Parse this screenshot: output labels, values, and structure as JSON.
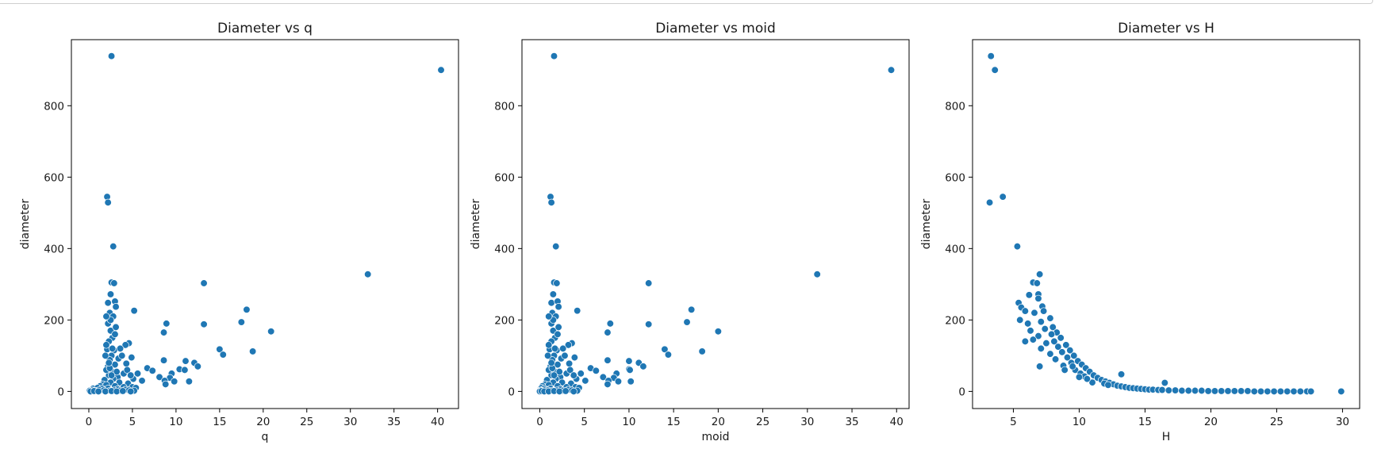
{
  "chart_data": [
    {
      "type": "scatter",
      "title": "Diameter vs q",
      "xlabel": "q",
      "ylabel": "diameter",
      "xlim": [
        -2,
        42.4
      ],
      "ylim": [
        -48,
        985
      ],
      "xticks": [
        0,
        5,
        10,
        15,
        20,
        25,
        30,
        35,
        40
      ],
      "yticks": [
        0,
        200,
        400,
        600,
        800
      ],
      "grid": false,
      "color": "#1f77b4",
      "points": [
        [
          2.6,
          939
        ],
        [
          40.4,
          900
        ],
        [
          2.1,
          545
        ],
        [
          2.2,
          529
        ],
        [
          2.8,
          406
        ],
        [
          32.0,
          328
        ],
        [
          2.6,
          305
        ],
        [
          2.9,
          303
        ],
        [
          13.2,
          303
        ],
        [
          2.5,
          272
        ],
        [
          2.2,
          248
        ],
        [
          3.0,
          252
        ],
        [
          3.1,
          237
        ],
        [
          18.1,
          229
        ],
        [
          5.2,
          226
        ],
        [
          2.4,
          220
        ],
        [
          2.8,
          210
        ],
        [
          17.5,
          194
        ],
        [
          8.9,
          190
        ],
        [
          13.2,
          188
        ],
        [
          20.9,
          168
        ],
        [
          8.6,
          165
        ],
        [
          18.8,
          112
        ],
        [
          2.2,
          190
        ],
        [
          2.5,
          170
        ],
        [
          2.7,
          150
        ],
        [
          3.0,
          160
        ],
        [
          2.3,
          140
        ],
        [
          4.6,
          135
        ],
        [
          4.2,
          130
        ],
        [
          2.1,
          118
        ],
        [
          2.9,
          115
        ],
        [
          15.0,
          118
        ],
        [
          15.4,
          103
        ],
        [
          2.6,
          100
        ],
        [
          4.9,
          95
        ],
        [
          3.4,
          92
        ],
        [
          2.4,
          88
        ],
        [
          8.6,
          87
        ],
        [
          11.1,
          85
        ],
        [
          12.1,
          80
        ],
        [
          4.3,
          78
        ],
        [
          3.0,
          75
        ],
        [
          12.5,
          70
        ],
        [
          2.2,
          70
        ],
        [
          10.4,
          62
        ],
        [
          6.7,
          65
        ],
        [
          11.0,
          60
        ],
        [
          7.3,
          58
        ],
        [
          9.5,
          50
        ],
        [
          2.7,
          55
        ],
        [
          4.0,
          50
        ],
        [
          5.6,
          50
        ],
        [
          2.3,
          45
        ],
        [
          8.1,
          40
        ],
        [
          9.3,
          38
        ],
        [
          8.7,
          30
        ],
        [
          9.8,
          28
        ],
        [
          11.5,
          28
        ],
        [
          6.1,
          30
        ],
        [
          5.1,
          35
        ],
        [
          3.3,
          40
        ],
        [
          2.8,
          35
        ],
        [
          1.8,
          32
        ],
        [
          8.8,
          20
        ],
        [
          1.6,
          20
        ],
        [
          2.5,
          25
        ],
        [
          3.5,
          25
        ],
        [
          4.5,
          22
        ],
        [
          1.3,
          15
        ],
        [
          2.0,
          18
        ],
        [
          3.0,
          15
        ],
        [
          4.0,
          12
        ],
        [
          5.0,
          12
        ],
        [
          0.5,
          8
        ],
        [
          1.0,
          10
        ],
        [
          1.5,
          8
        ],
        [
          2.2,
          8
        ],
        [
          3.3,
          6
        ],
        [
          4.2,
          5
        ],
        [
          5.4,
          10
        ],
        [
          0.1,
          2
        ],
        [
          0.4,
          3
        ],
        [
          0.8,
          2
        ],
        [
          1.2,
          4
        ],
        [
          1.7,
          3
        ],
        [
          2.4,
          2
        ],
        [
          2.9,
          3
        ],
        [
          3.6,
          2
        ],
        [
          4.6,
          3
        ],
        [
          5.2,
          2
        ],
        [
          0.2,
          0
        ],
        [
          0.6,
          1
        ],
        [
          1.1,
          0
        ],
        [
          1.9,
          0
        ],
        [
          2.6,
          1
        ],
        [
          3.2,
          0
        ],
        [
          3.9,
          1
        ],
        [
          4.8,
          0
        ],
        [
          2.0,
          60
        ],
        [
          2.4,
          65
        ],
        [
          3.2,
          55
        ],
        [
          2.6,
          45
        ],
        [
          4.4,
          60
        ],
        [
          3.8,
          100
        ],
        [
          3.6,
          120
        ],
        [
          2.0,
          130
        ],
        [
          2.5,
          200
        ],
        [
          2.0,
          210
        ],
        [
          3.1,
          180
        ],
        [
          2.7,
          120
        ],
        [
          1.9,
          100
        ],
        [
          2.3,
          80
        ],
        [
          4.8,
          45
        ]
      ]
    },
    {
      "type": "scatter",
      "title": "Diameter vs moid",
      "xlabel": "moid",
      "ylabel": "diameter",
      "xlim": [
        -2,
        41.4
      ],
      "ylim": [
        -48,
        985
      ],
      "xticks": [
        0,
        5,
        10,
        15,
        20,
        25,
        30,
        35,
        40
      ],
      "yticks": [
        0,
        200,
        400,
        600,
        800
      ],
      "grid": false,
      "color": "#1f77b4",
      "points": [
        [
          1.6,
          939
        ],
        [
          39.4,
          900
        ],
        [
          1.2,
          545
        ],
        [
          1.3,
          529
        ],
        [
          1.8,
          406
        ],
        [
          31.1,
          328
        ],
        [
          1.6,
          305
        ],
        [
          1.9,
          303
        ],
        [
          12.2,
          303
        ],
        [
          1.5,
          272
        ],
        [
          1.3,
          248
        ],
        [
          2.0,
          252
        ],
        [
          2.1,
          237
        ],
        [
          17.0,
          229
        ],
        [
          4.2,
          226
        ],
        [
          1.4,
          220
        ],
        [
          1.8,
          210
        ],
        [
          16.5,
          194
        ],
        [
          7.9,
          190
        ],
        [
          12.2,
          188
        ],
        [
          20.0,
          168
        ],
        [
          7.6,
          165
        ],
        [
          18.2,
          112
        ],
        [
          1.3,
          190
        ],
        [
          1.5,
          170
        ],
        [
          1.7,
          150
        ],
        [
          2.0,
          160
        ],
        [
          1.3,
          140
        ],
        [
          3.6,
          135
        ],
        [
          3.2,
          130
        ],
        [
          1.1,
          118
        ],
        [
          1.9,
          115
        ],
        [
          14.0,
          118
        ],
        [
          14.4,
          103
        ],
        [
          1.6,
          100
        ],
        [
          3.9,
          95
        ],
        [
          2.4,
          92
        ],
        [
          1.4,
          88
        ],
        [
          7.6,
          87
        ],
        [
          10.0,
          85
        ],
        [
          11.1,
          80
        ],
        [
          3.3,
          78
        ],
        [
          2.0,
          75
        ],
        [
          11.6,
          70
        ],
        [
          1.2,
          70
        ],
        [
          10.0,
          62
        ],
        [
          5.7,
          65
        ],
        [
          10.1,
          60
        ],
        [
          6.3,
          58
        ],
        [
          8.6,
          50
        ],
        [
          1.7,
          55
        ],
        [
          3.0,
          50
        ],
        [
          4.6,
          50
        ],
        [
          1.3,
          45
        ],
        [
          7.1,
          40
        ],
        [
          8.3,
          38
        ],
        [
          7.7,
          30
        ],
        [
          8.8,
          28
        ],
        [
          10.2,
          28
        ],
        [
          5.1,
          30
        ],
        [
          4.1,
          35
        ],
        [
          2.3,
          40
        ],
        [
          1.8,
          35
        ],
        [
          0.8,
          32
        ],
        [
          7.6,
          20
        ],
        [
          0.6,
          20
        ],
        [
          1.5,
          25
        ],
        [
          2.5,
          25
        ],
        [
          3.5,
          22
        ],
        [
          0.3,
          15
        ],
        [
          1.0,
          18
        ],
        [
          2.0,
          15
        ],
        [
          3.0,
          12
        ],
        [
          4.0,
          12
        ],
        [
          0.1,
          8
        ],
        [
          0.2,
          10
        ],
        [
          0.5,
          8
        ],
        [
          1.2,
          8
        ],
        [
          2.3,
          6
        ],
        [
          3.2,
          5
        ],
        [
          4.4,
          10
        ],
        [
          0.0,
          2
        ],
        [
          0.1,
          3
        ],
        [
          0.3,
          2
        ],
        [
          0.6,
          4
        ],
        [
          0.9,
          3
        ],
        [
          1.4,
          2
        ],
        [
          1.9,
          3
        ],
        [
          2.6,
          2
        ],
        [
          3.6,
          3
        ],
        [
          4.2,
          2
        ],
        [
          0.0,
          0
        ],
        [
          0.2,
          1
        ],
        [
          0.5,
          0
        ],
        [
          1.0,
          0
        ],
        [
          1.6,
          1
        ],
        [
          2.2,
          0
        ],
        [
          2.9,
          1
        ],
        [
          3.8,
          0
        ],
        [
          1.0,
          60
        ],
        [
          1.4,
          65
        ],
        [
          2.2,
          55
        ],
        [
          1.6,
          45
        ],
        [
          3.4,
          60
        ],
        [
          2.8,
          100
        ],
        [
          2.6,
          120
        ],
        [
          1.0,
          130
        ],
        [
          1.5,
          200
        ],
        [
          1.0,
          210
        ],
        [
          2.1,
          180
        ],
        [
          1.7,
          120
        ],
        [
          0.9,
          100
        ],
        [
          1.3,
          80
        ],
        [
          3.8,
          45
        ]
      ]
    },
    {
      "type": "scatter",
      "title": "Diameter vs H",
      "xlabel": "H",
      "ylabel": "diameter",
      "xlim": [
        1.9,
        31.3
      ],
      "ylim": [
        -48,
        985
      ],
      "xticks": [
        5,
        10,
        15,
        20,
        25,
        30
      ],
      "yticks": [
        0,
        200,
        400,
        600,
        800
      ],
      "grid": false,
      "color": "#1f77b4",
      "points": [
        [
          3.3,
          939
        ],
        [
          3.6,
          900
        ],
        [
          4.2,
          545
        ],
        [
          3.2,
          529
        ],
        [
          5.3,
          406
        ],
        [
          7.0,
          328
        ],
        [
          6.5,
          305
        ],
        [
          6.8,
          303
        ],
        [
          6.9,
          272
        ],
        [
          5.4,
          248
        ],
        [
          7.2,
          238
        ],
        [
          5.6,
          235
        ],
        [
          6.2,
          270
        ],
        [
          6.9,
          260
        ],
        [
          7.3,
          225
        ],
        [
          5.9,
          225
        ],
        [
          6.6,
          220
        ],
        [
          5.5,
          200
        ],
        [
          7.8,
          205
        ],
        [
          7.1,
          195
        ],
        [
          6.1,
          190
        ],
        [
          8.0,
          180
        ],
        [
          7.4,
          175
        ],
        [
          6.3,
          170
        ],
        [
          8.3,
          165
        ],
        [
          7.9,
          160
        ],
        [
          6.9,
          155
        ],
        [
          8.6,
          150
        ],
        [
          6.5,
          145
        ],
        [
          5.9,
          140
        ],
        [
          8.1,
          140
        ],
        [
          7.5,
          135
        ],
        [
          9.0,
          130
        ],
        [
          8.4,
          125
        ],
        [
          7.1,
          120
        ],
        [
          9.3,
          115
        ],
        [
          8.7,
          110
        ],
        [
          7.8,
          105
        ],
        [
          9.6,
          100
        ],
        [
          9.1,
          95
        ],
        [
          8.2,
          90
        ],
        [
          7.0,
          70
        ],
        [
          9.9,
          85
        ],
        [
          9.4,
          80
        ],
        [
          10.2,
          75
        ],
        [
          8.8,
          72
        ],
        [
          10.5,
          65
        ],
        [
          9.7,
          60
        ],
        [
          10.8,
          55
        ],
        [
          10.1,
          50
        ],
        [
          11.1,
          45
        ],
        [
          10.4,
          42
        ],
        [
          13.2,
          48
        ],
        [
          11.4,
          38
        ],
        [
          11.7,
          32
        ],
        [
          12.0,
          28
        ],
        [
          12.3,
          24
        ],
        [
          11.0,
          25
        ],
        [
          12.6,
          20
        ],
        [
          12.9,
          16
        ],
        [
          13.2,
          14
        ],
        [
          13.5,
          12
        ],
        [
          13.8,
          10
        ],
        [
          14.1,
          9
        ],
        [
          14.4,
          8
        ],
        [
          14.7,
          7
        ],
        [
          15.0,
          6
        ],
        [
          15.3,
          5
        ],
        [
          15.6,
          5
        ],
        [
          16.0,
          4
        ],
        [
          16.5,
          24
        ],
        [
          16.3,
          4
        ],
        [
          16.8,
          3
        ],
        [
          17.3,
          3
        ],
        [
          17.8,
          2
        ],
        [
          18.3,
          2
        ],
        [
          18.8,
          2
        ],
        [
          19.3,
          2
        ],
        [
          19.8,
          1
        ],
        [
          20.3,
          1
        ],
        [
          20.8,
          1
        ],
        [
          21.3,
          1
        ],
        [
          21.8,
          1
        ],
        [
          22.3,
          1
        ],
        [
          22.8,
          1
        ],
        [
          23.3,
          0
        ],
        [
          23.8,
          0
        ],
        [
          24.3,
          0
        ],
        [
          24.8,
          0
        ],
        [
          25.3,
          0
        ],
        [
          25.8,
          0
        ],
        [
          26.3,
          0
        ],
        [
          26.8,
          0
        ],
        [
          27.3,
          0
        ],
        [
          27.6,
          0
        ],
        [
          29.9,
          0
        ],
        [
          10.6,
          35
        ],
        [
          11.9,
          22
        ],
        [
          12.2,
          18
        ],
        [
          9.5,
          70
        ],
        [
          8.9,
          60
        ],
        [
          10.0,
          40
        ]
      ]
    }
  ]
}
